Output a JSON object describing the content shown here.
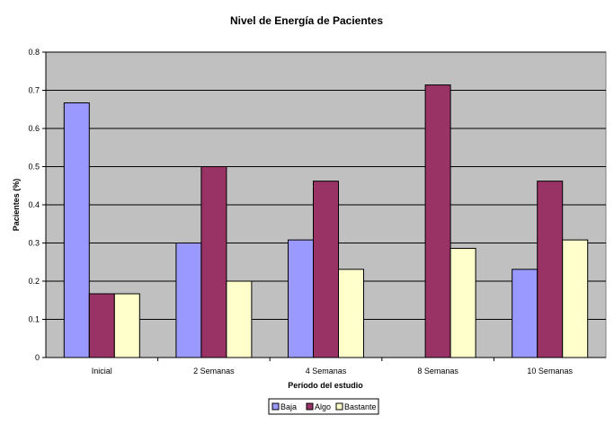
{
  "chart_data": {
    "type": "bar",
    "title": "Nivel de Energía de Pacientes",
    "xlabel": "Período del estudio",
    "ylabel": "Pacientes (%)",
    "ylim": [
      0,
      0.8
    ],
    "yticks": [
      "0",
      "0.1",
      "0.2",
      "0.3",
      "0.4",
      "0.5",
      "0.6",
      "0.7",
      "0.8"
    ],
    "categories": [
      "Inicial",
      "2 Semanas",
      "4 Semanas",
      "8 Semanas",
      "10 Semanas"
    ],
    "series": [
      {
        "name": "Baja",
        "color": "#9999ff",
        "values": [
          0.667,
          0.3,
          0.308,
          0,
          0.231
        ]
      },
      {
        "name": "Algo",
        "color": "#993366",
        "values": [
          0.167,
          0.5,
          0.462,
          0.714,
          0.462
        ]
      },
      {
        "name": "Bastante",
        "color": "#ffffcc",
        "values": [
          0.167,
          0.2,
          0.231,
          0.286,
          0.308
        ]
      }
    ],
    "grid": true,
    "plot_background": "#c0c0c0",
    "legend_position": "bottom"
  }
}
